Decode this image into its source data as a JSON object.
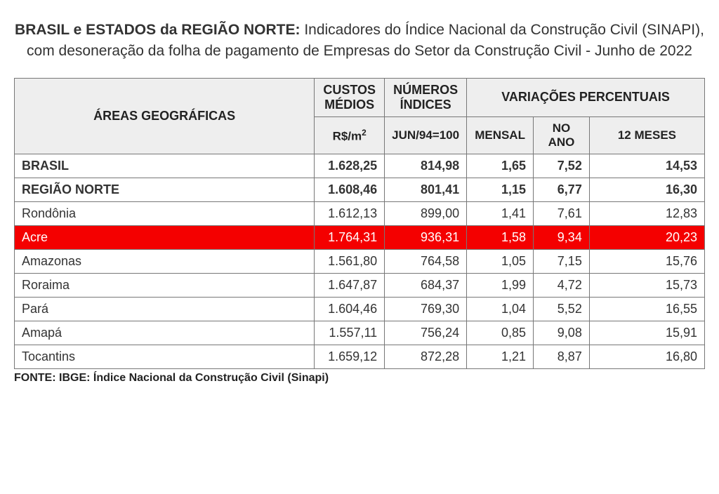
{
  "title_bold": "BRASIL e ESTADOS da REGIÃO NORTE:",
  "title_rest": " Indicadores do Índice Nacional da Construção Civil (SINAPI), com desoneração da folha de pagamento de Empresas do Setor da Construção Civil - Junho de 2022",
  "header": {
    "areas": "ÁREAS GEOGRÁFICAS",
    "custos_top": "CUSTOS MÉDIOS",
    "numeros_top": "NÚMEROS ÍNDICES",
    "variacoes": "VARIAÇÕES PERCENTUAIS",
    "custos_sub": "R$/m²",
    "numeros_sub": "JUN/94=100",
    "mensal": "MENSAL",
    "no_ano": "NO ANO",
    "doze_meses": "12 MESES"
  },
  "rows": [
    {
      "area": "BRASIL",
      "cm": "1.628,25",
      "ni": "814,98",
      "men": "1,65",
      "ano": "7,52",
      "m12": "14,53",
      "bold": true,
      "highlight": false
    },
    {
      "area": "REGIÃO NORTE",
      "cm": "1.608,46",
      "ni": "801,41",
      "men": "1,15",
      "ano": "6,77",
      "m12": "16,30",
      "bold": true,
      "highlight": false
    },
    {
      "area": "Rondônia",
      "cm": "1.612,13",
      "ni": "899,00",
      "men": "1,41",
      "ano": "7,61",
      "m12": "12,83",
      "bold": false,
      "highlight": false
    },
    {
      "area": "Acre",
      "cm": "1.764,31",
      "ni": "936,31",
      "men": "1,58",
      "ano": "9,34",
      "m12": "20,23",
      "bold": false,
      "highlight": true
    },
    {
      "area": "Amazonas",
      "cm": "1.561,80",
      "ni": "764,58",
      "men": "1,05",
      "ano": "7,15",
      "m12": "15,76",
      "bold": false,
      "highlight": false
    },
    {
      "area": "Roraima",
      "cm": "1.647,87",
      "ni": "684,37",
      "men": "1,99",
      "ano": "4,72",
      "m12": "15,73",
      "bold": false,
      "highlight": false
    },
    {
      "area": "Pará",
      "cm": "1.604,46",
      "ni": "769,30",
      "men": "1,04",
      "ano": "5,52",
      "m12": "16,55",
      "bold": false,
      "highlight": false
    },
    {
      "area": "Amapá",
      "cm": "1.557,11",
      "ni": "756,24",
      "men": "0,85",
      "ano": "9,08",
      "m12": "15,91",
      "bold": false,
      "highlight": false
    },
    {
      "area": "Tocantins",
      "cm": "1.659,12",
      "ni": "872,28",
      "men": "1,21",
      "ano": "8,87",
      "m12": "16,80",
      "bold": false,
      "highlight": false
    }
  ],
  "footnote": "FONTE: IBGE: Índice Nacional da Construção Civil (Sinapi)",
  "style": {
    "highlight_bg": "#f40000",
    "highlight_fg": "#ffffff",
    "header_bg": "#eeeeee",
    "border_color": "#777777",
    "page_bg": "#ffffff",
    "text_color": "#333333"
  }
}
